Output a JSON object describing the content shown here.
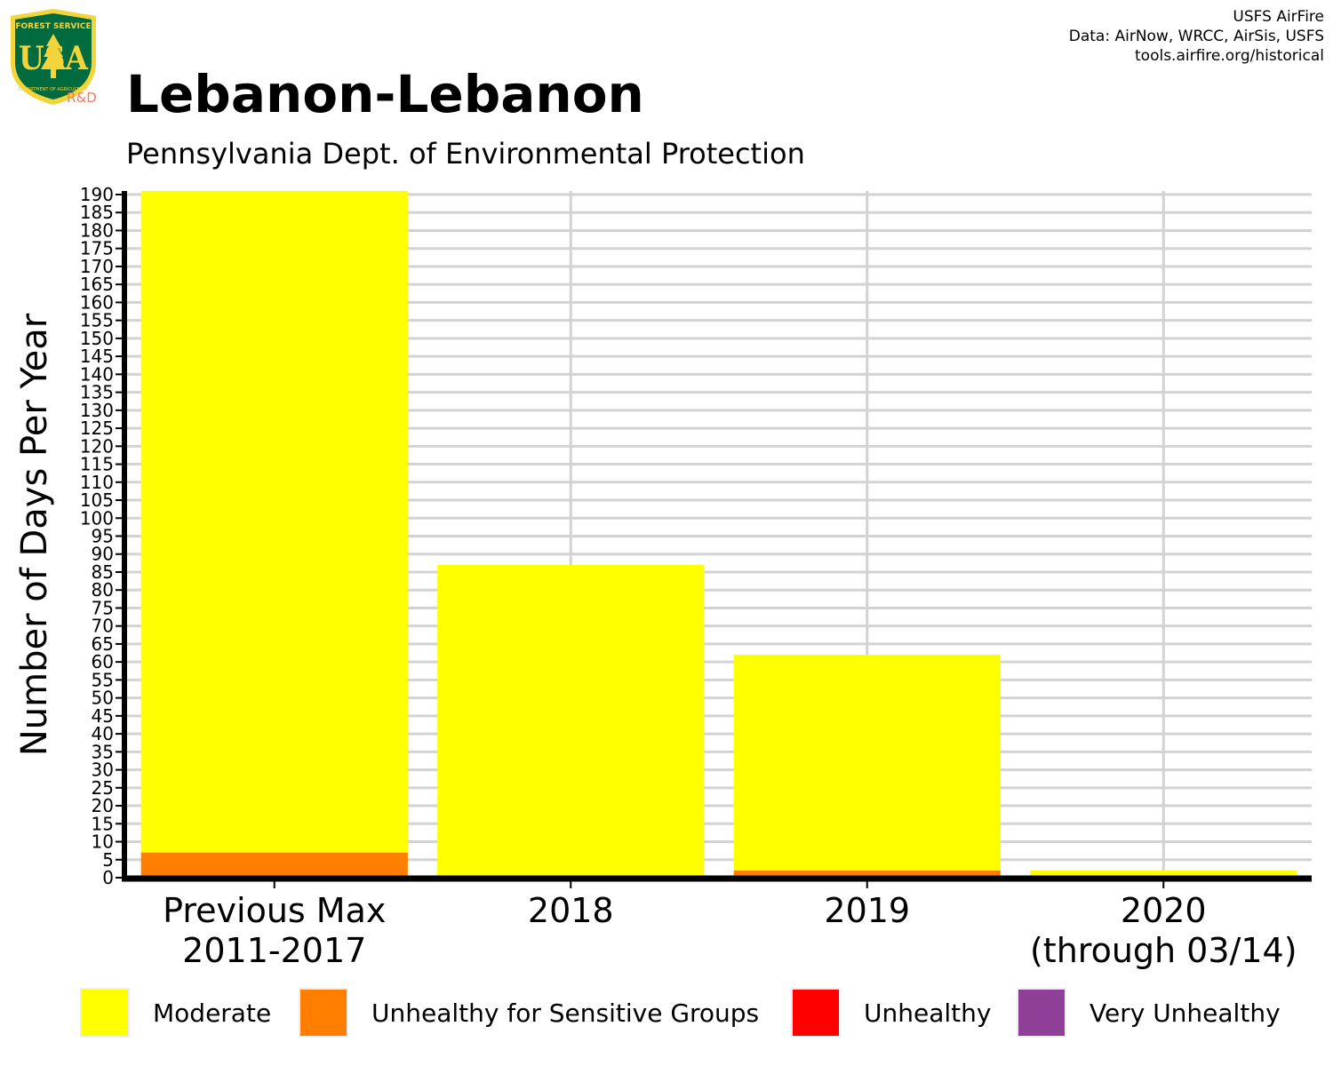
{
  "header": {
    "title": "Lebanon-Lebanon",
    "subtitle": "Pennsylvania Dept. of Environmental Protection",
    "credits": [
      "USFS AirFire",
      "Data: AirNow, WRCC, AirSis, USFS",
      "tools.airfire.org/historical"
    ]
  },
  "logo": {
    "arc_text": "FOREST SERVICE",
    "letters": "USA",
    "bottom_text": "DEPARTMENT OF AGRICULTURE",
    "tag": "R&D",
    "colors": {
      "shield": "#006b3f",
      "border": "#f3d43b",
      "tag": "#f4785a"
    }
  },
  "chart_data": {
    "type": "bar",
    "stacked": true,
    "title": "Lebanon-Lebanon",
    "subtitle": "Pennsylvania Dept. of Environmental Protection",
    "xlabel": "",
    "ylabel": "Number of Days Per Year",
    "ylim": [
      0,
      190
    ],
    "yticks": [
      0,
      5,
      10,
      15,
      20,
      25,
      30,
      35,
      40,
      45,
      50,
      55,
      60,
      65,
      70,
      75,
      80,
      85,
      90,
      95,
      100,
      105,
      110,
      115,
      120,
      125,
      130,
      135,
      140,
      145,
      150,
      155,
      160,
      165,
      170,
      175,
      180,
      185,
      190
    ],
    "grid": true,
    "legend_position": "bottom",
    "categories": [
      [
        "Previous Max",
        "2011-2017"
      ],
      [
        "2018"
      ],
      [
        "2019"
      ],
      [
        "2020",
        "(through 03/14)"
      ]
    ],
    "series": [
      {
        "name": "Unhealthy for Sensitive Groups",
        "color": "#ff7e00",
        "values": [
          7,
          0,
          2,
          0
        ]
      },
      {
        "name": "Moderate",
        "color": "#ffff00",
        "values": [
          184,
          87,
          60,
          2
        ]
      },
      {
        "name": "Unhealthy",
        "color": "#ff0000",
        "values": [
          0,
          0,
          0,
          0
        ]
      },
      {
        "name": "Very Unhealthy",
        "color": "#8f3f97",
        "values": [
          0,
          0,
          0,
          0
        ]
      }
    ],
    "legend": [
      {
        "name": "Moderate",
        "color": "#ffff00"
      },
      {
        "name": "Unhealthy for Sensitive Groups",
        "color": "#ff7e00"
      },
      {
        "name": "Unhealthy",
        "color": "#ff0000"
      },
      {
        "name": "Very Unhealthy",
        "color": "#8f3f97"
      }
    ]
  }
}
